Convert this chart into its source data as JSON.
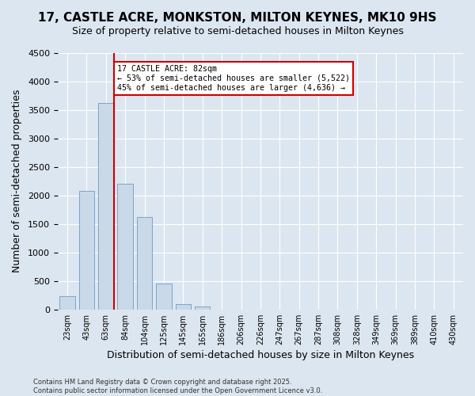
{
  "title": "17, CASTLE ACRE, MONKSTON, MILTON KEYNES, MK10 9HS",
  "subtitle": "Size of property relative to semi-detached houses in Milton Keynes",
  "xlabel": "Distribution of semi-detached houses by size in Milton Keynes",
  "ylabel": "Number of semi-detached properties",
  "bin_labels": [
    "23sqm",
    "43sqm",
    "63sqm",
    "84sqm",
    "104sqm",
    "125sqm",
    "145sqm",
    "165sqm",
    "186sqm",
    "206sqm",
    "226sqm",
    "247sqm",
    "267sqm",
    "287sqm",
    "308sqm",
    "328sqm",
    "349sqm",
    "369sqm",
    "389sqm",
    "410sqm",
    "430sqm"
  ],
  "values": [
    230,
    2080,
    3620,
    2200,
    1620,
    450,
    100,
    50,
    0,
    0,
    0,
    0,
    0,
    0,
    0,
    0,
    0,
    0,
    0,
    0,
    0
  ],
  "bar_color": "#c9d9e8",
  "bar_edge_color": "#5b8db8",
  "vline_color": "#cc0000",
  "vline_pos": 2.42,
  "annotation_text": "17 CASTLE ACRE: 82sqm\n← 53% of semi-detached houses are smaller (5,522)\n45% of semi-detached houses are larger (4,636) →",
  "annotation_box_color": "#ffffff",
  "annotation_box_edge": "#cc0000",
  "ylim": [
    0,
    4500
  ],
  "yticks": [
    0,
    500,
    1000,
    1500,
    2000,
    2500,
    3000,
    3500,
    4000,
    4500
  ],
  "background_color": "#dce6f0",
  "plot_bg_color": "#dce6f0",
  "grid_color": "#ffffff",
  "footer": "Contains HM Land Registry data © Crown copyright and database right 2025.\nContains public sector information licensed under the Open Government Licence v3.0.",
  "title_fontsize": 11,
  "subtitle_fontsize": 9,
  "xlabel_fontsize": 9,
  "ylabel_fontsize": 9
}
